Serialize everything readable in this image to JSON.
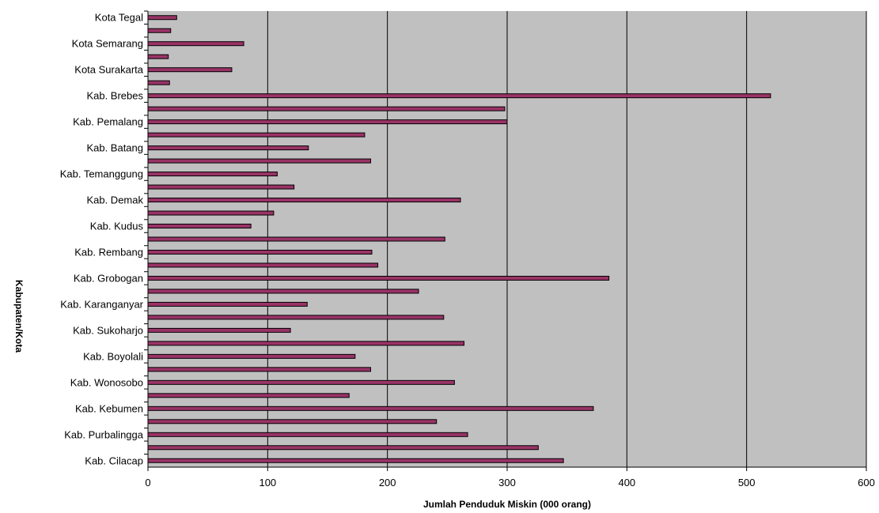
{
  "chart_data": {
    "type": "bar",
    "orientation": "horizontal",
    "xlabel": "Jumlah Penduduk Miskin (000 orang)",
    "ylabel": "Kabupaten/Kota",
    "xlim": [
      0,
      600
    ],
    "xticks": [
      0,
      100,
      200,
      300,
      400,
      500,
      600
    ],
    "grid": "vertical",
    "legend": "none",
    "bars": [
      {
        "label": "Kota Tegal",
        "value": 24
      },
      {
        "label": "",
        "value": 19
      },
      {
        "label": "Kota Semarang",
        "value": 80
      },
      {
        "label": "",
        "value": 17
      },
      {
        "label": "Kota Surakarta",
        "value": 70
      },
      {
        "label": "",
        "value": 18
      },
      {
        "label": "Kab. Brebes",
        "value": 520
      },
      {
        "label": "",
        "value": 298
      },
      {
        "label": "Kab. Pemalang",
        "value": 300
      },
      {
        "label": "",
        "value": 181
      },
      {
        "label": "Kab. Batang",
        "value": 134
      },
      {
        "label": "",
        "value": 186
      },
      {
        "label": "Kab. Temanggung",
        "value": 108
      },
      {
        "label": "",
        "value": 122
      },
      {
        "label": "Kab. Demak",
        "value": 261
      },
      {
        "label": "",
        "value": 105
      },
      {
        "label": "Kab. Kudus",
        "value": 86
      },
      {
        "label": "",
        "value": 248
      },
      {
        "label": "Kab. Rembang",
        "value": 187
      },
      {
        "label": "",
        "value": 192
      },
      {
        "label": "Kab. Grobogan",
        "value": 385
      },
      {
        "label": "",
        "value": 226
      },
      {
        "label": "Kab. Karanganyar",
        "value": 133
      },
      {
        "label": "",
        "value": 247
      },
      {
        "label": "Kab. Sukoharjo",
        "value": 119
      },
      {
        "label": "",
        "value": 264
      },
      {
        "label": "Kab. Boyolali",
        "value": 173
      },
      {
        "label": "",
        "value": 186
      },
      {
        "label": "Kab. Wonosobo",
        "value": 256
      },
      {
        "label": "",
        "value": 168
      },
      {
        "label": "Kab. Kebumen",
        "value": 372
      },
      {
        "label": "",
        "value": 241
      },
      {
        "label": "Kab. Purbalingga",
        "value": 267
      },
      {
        "label": "",
        "value": 326
      },
      {
        "label": "Kab. Cilacap",
        "value": 347
      }
    ]
  },
  "colors": {
    "plot_background": "#c0c0c0",
    "bar_fill": "#993366",
    "bar_stroke": "#000000",
    "gridline": "#000000"
  }
}
